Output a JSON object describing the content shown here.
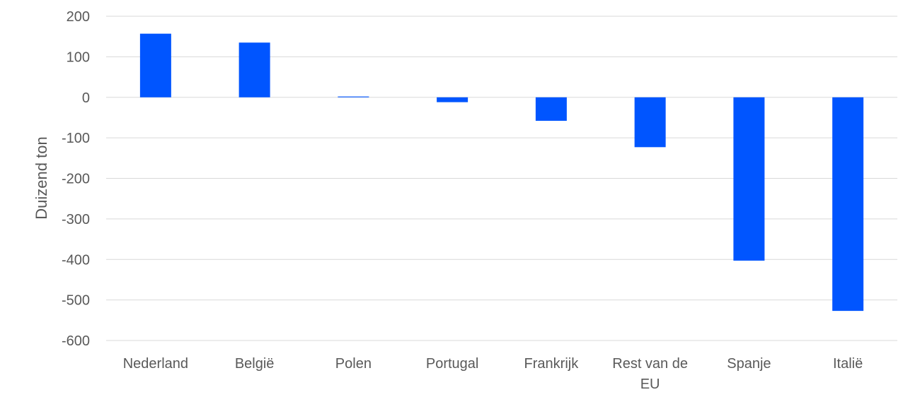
{
  "chart_data": {
    "type": "bar",
    "ylabel": "Duizend ton",
    "xlabel": "",
    "title": "",
    "ylim": [
      -600,
      200
    ],
    "yticks": [
      200,
      100,
      0,
      -100,
      -200,
      -300,
      -400,
      -500,
      -600
    ],
    "grid": true,
    "legend": "none",
    "bar_color": "#0055ff",
    "categories": [
      [
        "Nederland"
      ],
      [
        "België"
      ],
      [
        "Polen"
      ],
      [
        "Portugal"
      ],
      [
        "Frankrijk"
      ],
      [
        "Rest van de",
        "EU"
      ],
      [
        "Spanje"
      ],
      [
        "Italië"
      ]
    ],
    "values": [
      157,
      135,
      2,
      -12,
      -58,
      -123,
      -403,
      -527
    ]
  }
}
